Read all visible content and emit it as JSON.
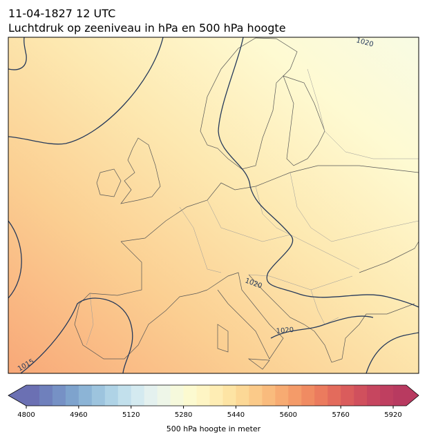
{
  "header": {
    "date": "11-04-1827 12 UTC",
    "title": "Luchtdruk op zeeniveau in hPa en 500 hPa hoogte"
  },
  "map": {
    "contour_labels": [
      "1020",
      "1020",
      "1020",
      "1015"
    ]
  },
  "colorbar": {
    "label": "500 hPa hoogte in meter",
    "lim": [
      4800,
      5960
    ],
    "ticks": [
      4800,
      4960,
      5120,
      5280,
      5440,
      5600,
      5760,
      5920
    ],
    "colors": [
      "#6b70b3",
      "#6f80bc",
      "#7691c5",
      "#7ea3cd",
      "#8cb4d6",
      "#9dc4de",
      "#afd3e6",
      "#c2e0ec",
      "#d4eaf0",
      "#e4f1ef",
      "#eef6e8",
      "#f6f9dc",
      "#fcfad0",
      "#fef5c4",
      "#feedb4",
      "#fde4a4",
      "#fcd896",
      "#fbca89",
      "#f9bb7d",
      "#f7ab72",
      "#f49b69",
      "#f08b62",
      "#eb7b5e",
      "#e36b5c",
      "#da5c5c",
      "#d0505d",
      "#c6465f",
      "#bf3f60",
      "#b83a60"
    ],
    "extend": "both"
  }
}
